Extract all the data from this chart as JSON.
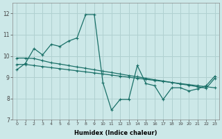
{
  "xlabel": "Humidex (Indice chaleur)",
  "ylabel": "",
  "background_color": "#cce8e8",
  "grid_color": "#b0d0d0",
  "line_color": "#1a7068",
  "xlim": [
    -0.5,
    23.5
  ],
  "ylim": [
    7,
    12.5
  ],
  "xticks": [
    0,
    1,
    2,
    3,
    4,
    5,
    6,
    7,
    8,
    9,
    10,
    11,
    12,
    13,
    14,
    15,
    16,
    17,
    18,
    19,
    20,
    21,
    22,
    23
  ],
  "yticks": [
    7,
    8,
    9,
    10,
    11,
    12
  ],
  "series1_x": [
    0,
    1,
    2,
    3,
    4,
    5,
    6,
    7,
    8,
    9,
    10,
    11,
    12,
    13,
    14,
    15,
    16,
    17,
    18,
    19,
    20,
    21,
    22,
    23
  ],
  "series1_y": [
    9.35,
    9.65,
    10.35,
    10.05,
    10.55,
    10.45,
    10.7,
    10.85,
    11.95,
    11.95,
    8.75,
    7.45,
    7.95,
    7.95,
    9.55,
    8.7,
    8.6,
    7.95,
    8.5,
    8.5,
    8.35,
    8.45,
    8.6,
    9.05
  ],
  "series2_x": [
    0,
    1,
    2,
    3,
    4,
    5,
    6,
    7,
    8,
    9,
    10,
    11,
    12,
    13,
    14,
    15,
    16,
    17,
    18,
    19,
    20,
    21,
    22,
    23
  ],
  "series2_y": [
    9.9,
    9.9,
    9.88,
    9.78,
    9.68,
    9.62,
    9.55,
    9.48,
    9.42,
    9.35,
    9.28,
    9.22,
    9.15,
    9.08,
    9.02,
    8.95,
    8.88,
    8.82,
    8.75,
    8.68,
    8.62,
    8.55,
    8.48,
    8.95
  ],
  "series3_x": [
    0,
    1,
    2,
    3,
    4,
    5,
    6,
    7,
    8,
    9,
    10,
    11,
    12,
    13,
    14,
    15,
    16,
    17,
    18,
    19,
    20,
    21,
    22,
    23
  ],
  "series3_y": [
    9.6,
    9.6,
    9.55,
    9.5,
    9.45,
    9.4,
    9.35,
    9.3,
    9.25,
    9.2,
    9.15,
    9.1,
    9.05,
    9.0,
    8.95,
    8.9,
    8.85,
    8.8,
    8.75,
    8.7,
    8.65,
    8.6,
    8.55,
    8.5
  ]
}
